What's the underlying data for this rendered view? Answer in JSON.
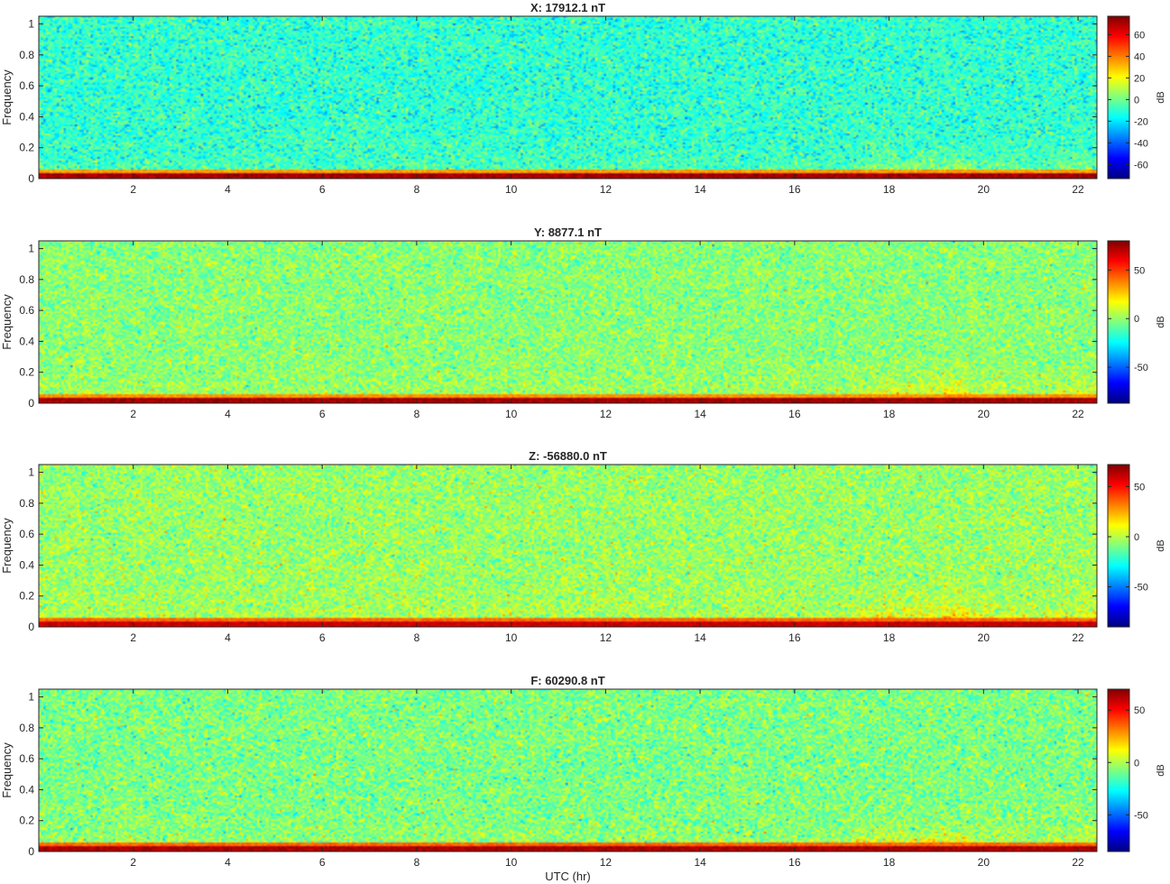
{
  "figure": {
    "xlabel": "UTC (hr)",
    "colormap": "jet",
    "colors": {
      "jet_stops": [
        "#00007f",
        "#0000ff",
        "#007fff",
        "#00ffff",
        "#7fff7f",
        "#ffff00",
        "#ff7f00",
        "#ff0000",
        "#7f0000"
      ],
      "axis": "#262626",
      "background": "#ffffff"
    }
  },
  "chart_data": [
    {
      "type": "heatmap",
      "title": "X: 17912.1 nT",
      "xlabel": "",
      "ylabel": "Frequency",
      "xlim": [
        0.0,
        22.4
      ],
      "ylim": [
        0,
        1.05
      ],
      "xticks": [
        2,
        4,
        6,
        8,
        10,
        12,
        14,
        16,
        18,
        20,
        22
      ],
      "yticks": [
        0,
        0.2,
        0.4,
        0.6,
        0.8,
        1
      ],
      "ytick_labels": [
        "0",
        "0.2",
        "0.4",
        "0.6",
        "0.8",
        "1"
      ],
      "colorbar": {
        "label": "dB",
        "clim": [
          -73,
          77
        ],
        "ticks": [
          -60,
          -40,
          -20,
          0,
          20,
          40,
          60
        ]
      },
      "description_values": {
        "background_db": -10,
        "low_freq_band_db": 77,
        "noise_db": 12,
        "late_activity_db": 22
      }
    },
    {
      "type": "heatmap",
      "title": "Y: 8877.1 nT",
      "xlabel": "",
      "ylabel": "Frequency",
      "xlim": [
        0.0,
        22.4
      ],
      "ylim": [
        0,
        1.05
      ],
      "xticks": [
        2,
        4,
        6,
        8,
        10,
        12,
        14,
        16,
        18,
        20,
        22
      ],
      "yticks": [
        0,
        0.2,
        0.4,
        0.6,
        0.8,
        1
      ],
      "ytick_labels": [
        "0",
        "0.2",
        "0.4",
        "0.6",
        "0.8",
        "1"
      ],
      "colorbar": {
        "label": "dB",
        "clim": [
          -87,
          80
        ],
        "ticks": [
          -50,
          0,
          50
        ]
      },
      "description_values": {
        "background_db": -2,
        "low_freq_band_db": 80,
        "noise_db": 13,
        "late_activity_db": 28
      }
    },
    {
      "type": "heatmap",
      "title": "Z: -56880.0 nT",
      "xlabel": "",
      "ylabel": "Frequency",
      "xlim": [
        0.0,
        22.4
      ],
      "ylim": [
        0,
        1.05
      ],
      "xticks": [
        2,
        4,
        6,
        8,
        10,
        12,
        14,
        16,
        18,
        20,
        22
      ],
      "yticks": [
        0,
        0.2,
        0.4,
        0.6,
        0.8,
        1
      ],
      "ytick_labels": [
        "0",
        "0.2",
        "0.4",
        "0.6",
        "0.8",
        "1"
      ],
      "colorbar": {
        "label": "dB",
        "clim": [
          -90,
          72
        ],
        "ticks": [
          -50,
          0,
          50
        ]
      },
      "description_values": {
        "background_db": -5,
        "low_freq_band_db": 65,
        "noise_db": 13,
        "late_activity_db": 30
      }
    },
    {
      "type": "heatmap",
      "title": "F: 60290.8 nT",
      "xlabel": "UTC (hr)",
      "ylabel": "Frequency",
      "xlim": [
        0.0,
        22.4
      ],
      "ylim": [
        0,
        1.05
      ],
      "xticks": [
        2,
        4,
        6,
        8,
        10,
        12,
        14,
        16,
        18,
        20,
        22
      ],
      "yticks": [
        0,
        0.2,
        0.4,
        0.6,
        0.8,
        1
      ],
      "ytick_labels": [
        "0",
        "0.2",
        "0.4",
        "0.6",
        "0.8",
        "1"
      ],
      "colorbar": {
        "label": "dB",
        "clim": [
          -85,
          70
        ],
        "ticks": [
          -50,
          0,
          50
        ]
      },
      "description_values": {
        "background_db": -8,
        "low_freq_band_db": 68,
        "noise_db": 13,
        "late_activity_db": 28
      }
    }
  ]
}
